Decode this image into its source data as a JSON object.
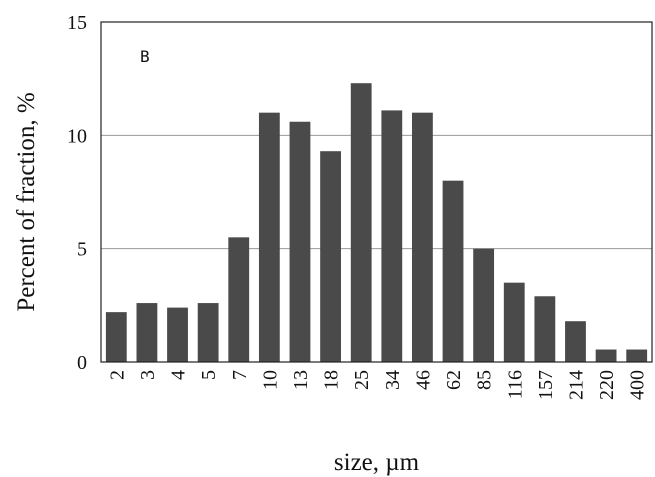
{
  "chart_data": {
    "type": "bar",
    "panel_label": "B",
    "xlabel": "size, µm",
    "ylabel": "Percent of fraction, %",
    "categories": [
      "2",
      "3",
      "4",
      "5",
      "7",
      "10",
      "13",
      "18",
      "25",
      "34",
      "46",
      "62",
      "85",
      "116",
      "157",
      "214",
      "220",
      "400"
    ],
    "values": [
      2.2,
      2.6,
      2.4,
      2.6,
      5.5,
      11.0,
      10.6,
      9.3,
      12.3,
      11.1,
      11.0,
      8.0,
      5.0,
      3.5,
      2.9,
      1.8,
      0.55,
      0.55
    ],
    "ylim": [
      0,
      15
    ],
    "yticks": [
      "0",
      "5",
      "10",
      "15"
    ],
    "grid": true,
    "colors": {
      "bar": "#4a4a4a",
      "grid": "#999999",
      "axis": "#222222"
    }
  }
}
